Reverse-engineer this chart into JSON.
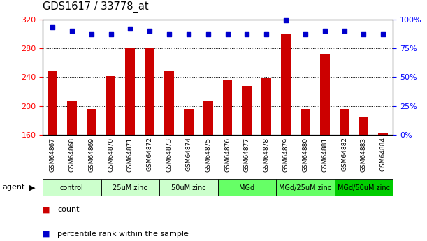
{
  "title": "GDS1617 / 33778_at",
  "samples": [
    "GSM64867",
    "GSM64868",
    "GSM64869",
    "GSM64870",
    "GSM64871",
    "GSM64872",
    "GSM64873",
    "GSM64874",
    "GSM64875",
    "GSM64876",
    "GSM64877",
    "GSM64878",
    "GSM64879",
    "GSM64880",
    "GSM64881",
    "GSM64882",
    "GSM64883",
    "GSM64884"
  ],
  "counts": [
    248,
    207,
    196,
    241,
    281,
    281,
    248,
    196,
    207,
    236,
    228,
    239,
    300,
    196,
    272,
    196,
    184,
    162
  ],
  "percentile_ranks": [
    93,
    90,
    87,
    87,
    92,
    90,
    87,
    87,
    87,
    87,
    87,
    87,
    99,
    87,
    90,
    90,
    87,
    87
  ],
  "ylim": [
    160,
    320
  ],
  "yticks": [
    160,
    200,
    240,
    280,
    320
  ],
  "yright_ticks": [
    0,
    25,
    50,
    75,
    100
  ],
  "yright_labels": [
    "0%",
    "25%",
    "50%",
    "75%",
    "100%"
  ],
  "bar_color": "#cc0000",
  "dot_color": "#0000cc",
  "groups": [
    {
      "label": "control",
      "start": 0,
      "end": 3,
      "color": "#ccffcc"
    },
    {
      "label": "25uM zinc",
      "start": 3,
      "end": 6,
      "color": "#ccffcc"
    },
    {
      "label": "50uM zinc",
      "start": 6,
      "end": 9,
      "color": "#ccffcc"
    },
    {
      "label": "MGd",
      "start": 9,
      "end": 12,
      "color": "#66ff66"
    },
    {
      "label": "MGd/25uM zinc",
      "start": 12,
      "end": 15,
      "color": "#66ff66"
    },
    {
      "label": "MGd/50uM zinc",
      "start": 15,
      "end": 18,
      "color": "#00cc00"
    }
  ],
  "legend_count_label": "count",
  "legend_pct_label": "percentile rank within the sample",
  "bg_color": "#ffffff",
  "bar_width": 0.5,
  "gridline_yticks": [
    200,
    240,
    280
  ]
}
